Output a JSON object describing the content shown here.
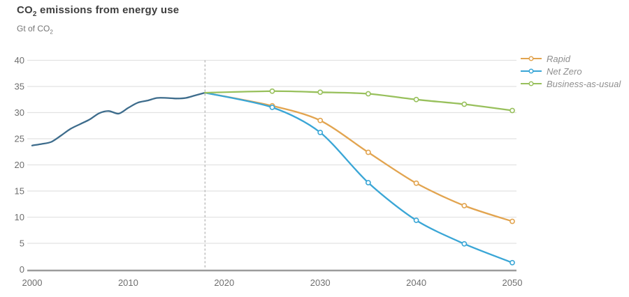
{
  "header": {
    "title_co": "CO",
    "title_sub": "2",
    "title_rest": " emissions from energy use",
    "unit_co": "Gt of CO",
    "unit_sub": "2"
  },
  "colors": {
    "history_line": "#3d6c8c",
    "rapid": "#e2a44f",
    "net_zero": "#3aa6d6",
    "business_as_usual": "#98c05c",
    "gridline": "#e2e2e2",
    "axis_line": "#9c9c9c",
    "divider_dashed": "#b0b0b0",
    "tick_text": "#6e6e6e",
    "legend_text": "#8f8f8f",
    "marker_fill": "#ffffff"
  },
  "chart_data": {
    "type": "line",
    "title": "CO2 emissions from energy use",
    "ylabel": "Gt of CO2",
    "xlabel": "",
    "xlim": [
      2000,
      2050
    ],
    "ylim": [
      0,
      40
    ],
    "xticks": [
      2000,
      2010,
      2020,
      2030,
      2040,
      2050
    ],
    "yticks": [
      0,
      5,
      10,
      15,
      20,
      25,
      30,
      35,
      40
    ],
    "grid": "horizontal",
    "forecast_divider_x": 2018,
    "legend_position": "top-right",
    "series": [
      {
        "name": "History",
        "color": "#3d6c8c",
        "markers": false,
        "show_in_legend": false,
        "x": [
          2000,
          2001,
          2002,
          2003,
          2004,
          2005,
          2006,
          2007,
          2008,
          2009,
          2010,
          2011,
          2012,
          2013,
          2014,
          2015,
          2016,
          2017,
          2018
        ],
        "y": [
          23.7,
          24.0,
          24.4,
          25.6,
          26.9,
          27.8,
          28.7,
          29.9,
          30.3,
          29.8,
          30.9,
          31.9,
          32.3,
          32.8,
          32.8,
          32.7,
          32.8,
          33.3,
          33.8
        ]
      },
      {
        "name": "Rapid",
        "color": "#e2a44f",
        "markers": true,
        "show_in_legend": true,
        "x": [
          2018,
          2025,
          2030,
          2035,
          2040,
          2045,
          2050
        ],
        "y": [
          33.8,
          31.3,
          28.5,
          22.4,
          16.5,
          12.2,
          9.2
        ]
      },
      {
        "name": "Net Zero",
        "color": "#3aa6d6",
        "markers": true,
        "show_in_legend": true,
        "x": [
          2018,
          2025,
          2030,
          2035,
          2040,
          2045,
          2050
        ],
        "y": [
          33.8,
          31.0,
          26.2,
          16.6,
          9.4,
          4.9,
          1.3
        ]
      },
      {
        "name": "Business-as-usual",
        "color": "#98c05c",
        "markers": true,
        "show_in_legend": true,
        "x": [
          2018,
          2025,
          2030,
          2035,
          2040,
          2045,
          2050
        ],
        "y": [
          33.8,
          34.1,
          33.9,
          33.6,
          32.5,
          31.6,
          30.4
        ]
      }
    ]
  }
}
